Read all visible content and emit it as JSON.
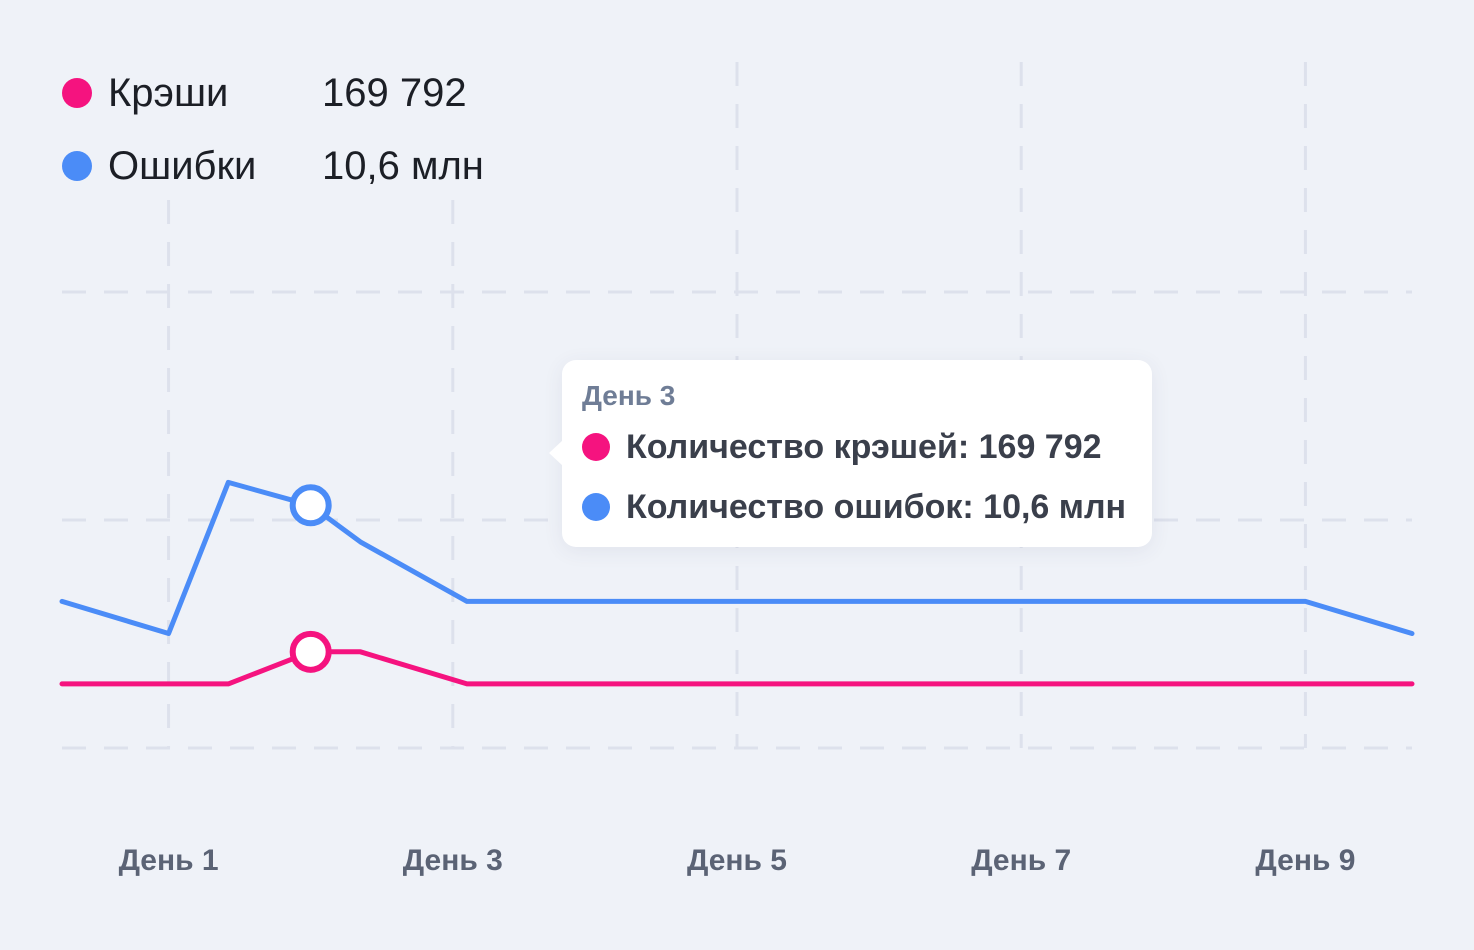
{
  "legend": [
    {
      "label": "Крэши",
      "value": "169 792",
      "color": "#f5137f"
    },
    {
      "label": "Ошибки",
      "value": "10,6 млн",
      "color": "#4b8cf7"
    }
  ],
  "tooltip": {
    "title": "День 3",
    "rows": [
      {
        "text": "Количество крэшей: 169 792",
        "color": "#f5137f"
      },
      {
        "text": "Количество ошибок: 10,6 млн",
        "color": "#4b8cf7"
      }
    ]
  },
  "chart_data": {
    "type": "line",
    "x": [
      0.25,
      1,
      1.42,
      2,
      2.35,
      3.1,
      4.2,
      5,
      6,
      7,
      8,
      9,
      9.75
    ],
    "x_tick_values": [
      1,
      3,
      5,
      7,
      9
    ],
    "x_tick_labels": [
      "День 1",
      "День 3",
      "День 5",
      "День 7",
      "День 9"
    ],
    "xlim": [
      0.25,
      9.75
    ],
    "ylim": [
      0,
      10
    ],
    "grid": true,
    "legend_position": "top-left",
    "highlight_x": 2,
    "series": [
      {
        "name": "Ошибки",
        "color": "#4b8cf7",
        "values": [
          3.2,
          2.5,
          5.8,
          5.3,
          4.5,
          3.2,
          3.2,
          3.2,
          3.2,
          3.2,
          3.2,
          3.2,
          2.5
        ]
      },
      {
        "name": "Крэши",
        "color": "#f5137f",
        "values": [
          1.4,
          1.4,
          1.4,
          2.1,
          2.1,
          1.4,
          1.4,
          1.4,
          1.4,
          1.4,
          1.4,
          1.4,
          1.4
        ]
      }
    ]
  }
}
